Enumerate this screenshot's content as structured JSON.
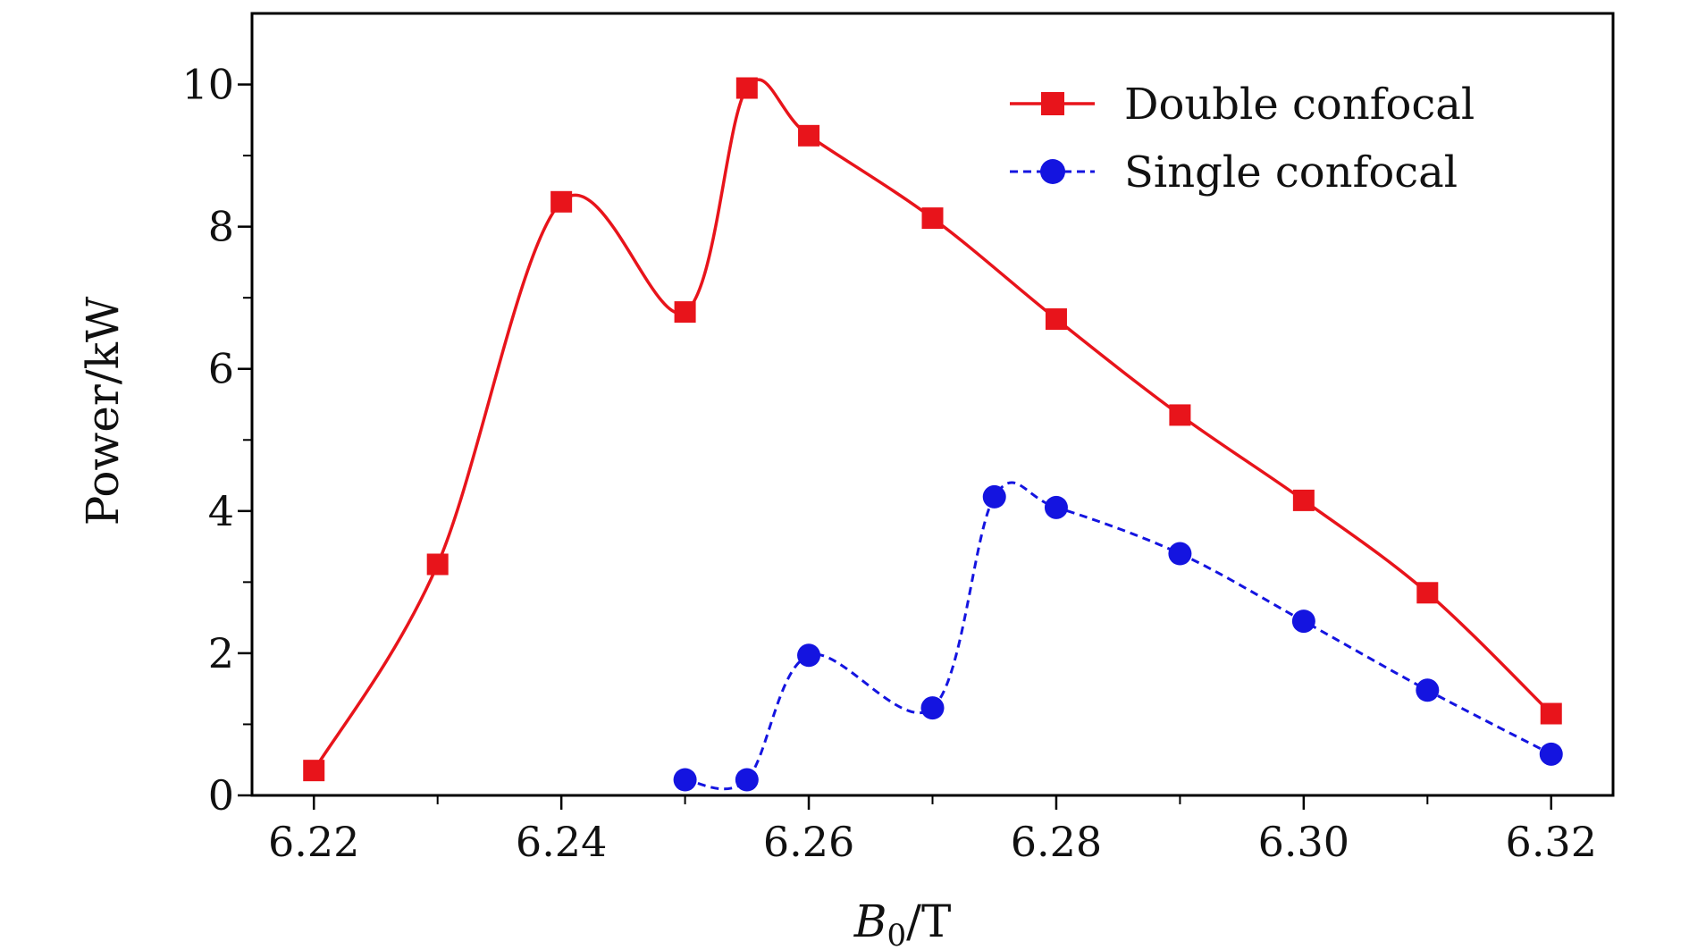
{
  "chart_data": {
    "type": "line",
    "xlabel": "B0/T",
    "xlabel_parts": {
      "symbol": "B",
      "subscript": "0",
      "unit": "/T"
    },
    "ylabel": "Power/kW",
    "xlim": [
      6.215,
      6.325
    ],
    "ylim": [
      0,
      11
    ],
    "x_ticks": [
      "6.22",
      "6.24",
      "6.26",
      "6.28",
      "6.30",
      "6.32"
    ],
    "x_minor_ticks": [
      6.23,
      6.25,
      6.27,
      6.29,
      6.31
    ],
    "y_ticks": [
      "0",
      "2",
      "4",
      "6",
      "8",
      "10"
    ],
    "y_minor_ticks": [
      1,
      3,
      5,
      7,
      9
    ],
    "grid": false,
    "legend_position": "top-right",
    "series": [
      {
        "name": "Double confocal",
        "color": "#e8141b",
        "marker": "square",
        "line_style": "solid",
        "x": [
          6.22,
          6.23,
          6.24,
          6.25,
          6.255,
          6.26,
          6.27,
          6.28,
          6.29,
          6.3,
          6.31,
          6.32
        ],
        "y": [
          0.35,
          3.25,
          8.35,
          6.8,
          9.95,
          9.28,
          8.12,
          6.7,
          5.35,
          4.15,
          2.85,
          1.15
        ]
      },
      {
        "name": "Single confocal",
        "color": "#1414e0",
        "marker": "circle",
        "line_style": "dashed",
        "x": [
          6.25,
          6.255,
          6.26,
          6.27,
          6.275,
          6.28,
          6.29,
          6.3,
          6.31,
          6.32
        ],
        "y": [
          0.22,
          0.22,
          1.97,
          1.23,
          4.2,
          4.05,
          3.4,
          2.45,
          1.48,
          0.58
        ]
      }
    ]
  }
}
